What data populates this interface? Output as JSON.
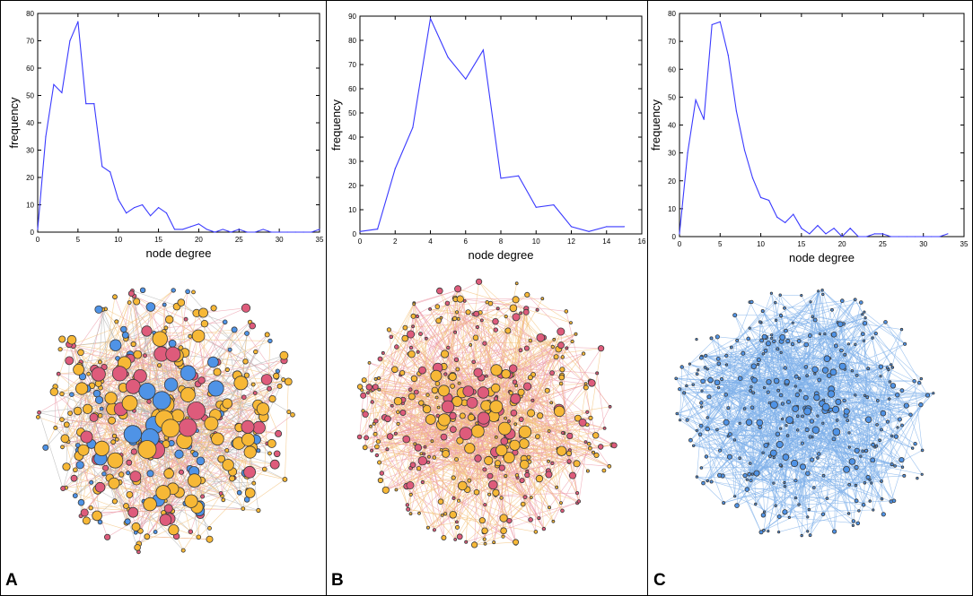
{
  "panels": [
    {
      "letter": "A",
      "network_palette": "orange-pink-blue"
    },
    {
      "letter": "B",
      "network_palette": "orange-pink"
    },
    {
      "letter": "C",
      "network_palette": "blue"
    }
  ],
  "colors": {
    "line": "#3a3aff",
    "orange": "#f7b836",
    "pink": "#de5b7b",
    "blue": "#4f93e6",
    "node_border": "#3a3a3a",
    "edge_orange": "#f3c27a",
    "edge_pink": "#ec9aa8",
    "edge_blue": "#7fb0ea"
  },
  "chart_data": [
    {
      "type": "line",
      "panel": "A",
      "xlabel": "node degree",
      "ylabel": "frequency",
      "xlim": [
        0,
        35
      ],
      "ylim": [
        0,
        80
      ],
      "xticks": [
        0,
        5,
        10,
        15,
        20,
        25,
        30,
        35
      ],
      "yticks": [
        0,
        10,
        20,
        30,
        40,
        50,
        60,
        70,
        80
      ],
      "series": [
        {
          "name": "frequency",
          "x": [
            0,
            1,
            2,
            3,
            4,
            5,
            6,
            7,
            8,
            9,
            10,
            11,
            12,
            13,
            14,
            15,
            16,
            17,
            18,
            19,
            20,
            21,
            22,
            23,
            24,
            25,
            26,
            27,
            28,
            29,
            30,
            31,
            32,
            33,
            34,
            35
          ],
          "values": [
            1,
            35,
            54,
            51,
            70,
            77,
            47,
            47,
            24,
            22,
            12,
            7,
            9,
            10,
            6,
            9,
            7,
            1,
            1,
            2,
            3,
            1,
            0,
            1,
            0,
            1,
            0,
            0,
            1,
            0,
            0,
            0,
            0,
            0,
            0,
            1
          ]
        }
      ]
    },
    {
      "type": "line",
      "panel": "B",
      "xlabel": "node degree",
      "ylabel": "frequency",
      "xlim": [
        0,
        16
      ],
      "ylim": [
        0,
        90
      ],
      "xticks": [
        0,
        2,
        4,
        6,
        8,
        10,
        12,
        14,
        16
      ],
      "yticks": [
        0,
        10,
        20,
        30,
        40,
        50,
        60,
        70,
        80,
        90
      ],
      "series": [
        {
          "name": "frequency",
          "x": [
            0,
            1,
            2,
            3,
            4,
            5,
            6,
            7,
            8,
            9,
            10,
            11,
            12,
            13,
            14,
            15
          ],
          "values": [
            1,
            2,
            27,
            44,
            89,
            73,
            64,
            76,
            23,
            24,
            11,
            12,
            3,
            1,
            3,
            3
          ]
        }
      ]
    },
    {
      "type": "line",
      "panel": "C",
      "xlabel": "node degree",
      "ylabel": "frequency",
      "xlim": [
        0,
        35
      ],
      "ylim": [
        0,
        80
      ],
      "xticks": [
        0,
        5,
        10,
        15,
        20,
        25,
        30,
        35
      ],
      "yticks": [
        0,
        10,
        20,
        30,
        40,
        50,
        60,
        70,
        80
      ],
      "series": [
        {
          "name": "frequency",
          "x": [
            0,
            1,
            2,
            3,
            4,
            5,
            6,
            7,
            8,
            9,
            10,
            11,
            12,
            13,
            14,
            15,
            16,
            17,
            18,
            19,
            20,
            21,
            22,
            23,
            24,
            25,
            26,
            27,
            28,
            29,
            30,
            31,
            32,
            33
          ],
          "values": [
            1,
            30,
            49,
            42,
            76,
            77,
            65,
            45,
            31,
            21,
            14,
            13,
            7,
            5,
            8,
            3,
            1,
            4,
            1,
            3,
            0,
            3,
            0,
            0,
            1,
            1,
            0,
            0,
            0,
            0,
            0,
            0,
            0,
            1
          ]
        }
      ]
    }
  ]
}
